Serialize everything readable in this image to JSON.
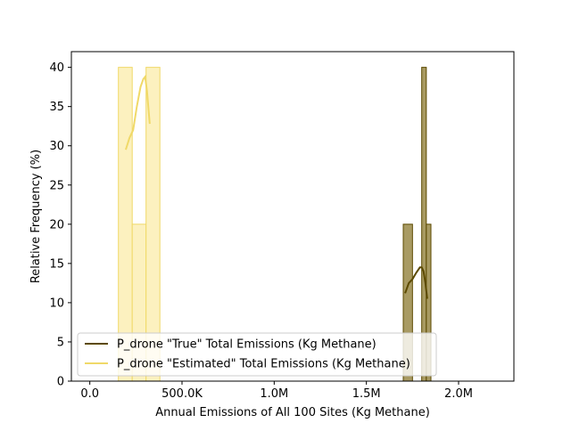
{
  "chart_data": {
    "type": "histogram",
    "title": "",
    "xlabel": "Annual Emissions of All 100 Sites (Kg Methane)",
    "ylabel": "Relative Frequency (%)",
    "xlim": [
      -100000,
      2300000
    ],
    "ylim": [
      0,
      42
    ],
    "x_ticks": [
      {
        "value": 0,
        "label": "0.0"
      },
      {
        "value": 500000,
        "label": "500.0K"
      },
      {
        "value": 1000000,
        "label": "1.0M"
      },
      {
        "value": 1500000,
        "label": "1.5M"
      },
      {
        "value": 2000000,
        "label": "2.0M"
      }
    ],
    "y_ticks": [
      {
        "value": 0,
        "label": "0"
      },
      {
        "value": 5,
        "label": "5"
      },
      {
        "value": 10,
        "label": "10"
      },
      {
        "value": 15,
        "label": "15"
      },
      {
        "value": 20,
        "label": "20"
      },
      {
        "value": 25,
        "label": "25"
      },
      {
        "value": 30,
        "label": "30"
      },
      {
        "value": 35,
        "label": "35"
      },
      {
        "value": 40,
        "label": "40"
      }
    ],
    "grid": false,
    "legend_position": "lower-left",
    "series": [
      {
        "name": "P_drone \"True\" Total Emissions (Kg Methane)",
        "color": "#5c4a00",
        "fill": "#a89a62",
        "bins": [
          {
            "x0": 1700000,
            "x1": 1750000,
            "value": 20
          },
          {
            "x0": 1750000,
            "x1": 1800000,
            "value": 0
          },
          {
            "x0": 1800000,
            "x1": 1825000,
            "value": 40
          },
          {
            "x0": 1825000,
            "x1": 1850000,
            "value": 20
          }
        ],
        "kde_x": [
          1710000,
          1730000,
          1750000,
          1770000,
          1790000,
          1800000,
          1810000,
          1820000,
          1830000
        ],
        "kde_y": [
          11.2,
          12.5,
          13.0,
          13.8,
          14.5,
          14.5,
          14.0,
          12.5,
          10.5
        ]
      },
      {
        "name": "P_drone \"Estimated\" Total Emissions (Kg Methane)",
        "color": "#f0d968",
        "fill": "#fcf1bf",
        "bins": [
          {
            "x0": 155000,
            "x1": 230000,
            "value": 40
          },
          {
            "x0": 230000,
            "x1": 305000,
            "value": 20
          },
          {
            "x0": 305000,
            "x1": 380000,
            "value": 40
          }
        ],
        "kde_x": [
          195000,
          215000,
          235000,
          255000,
          275000,
          290000,
          300000,
          310000,
          325000
        ],
        "kde_y": [
          29.5,
          31.0,
          32.0,
          35.0,
          37.5,
          38.5,
          38.8,
          37.0,
          32.8
        ]
      }
    ]
  }
}
